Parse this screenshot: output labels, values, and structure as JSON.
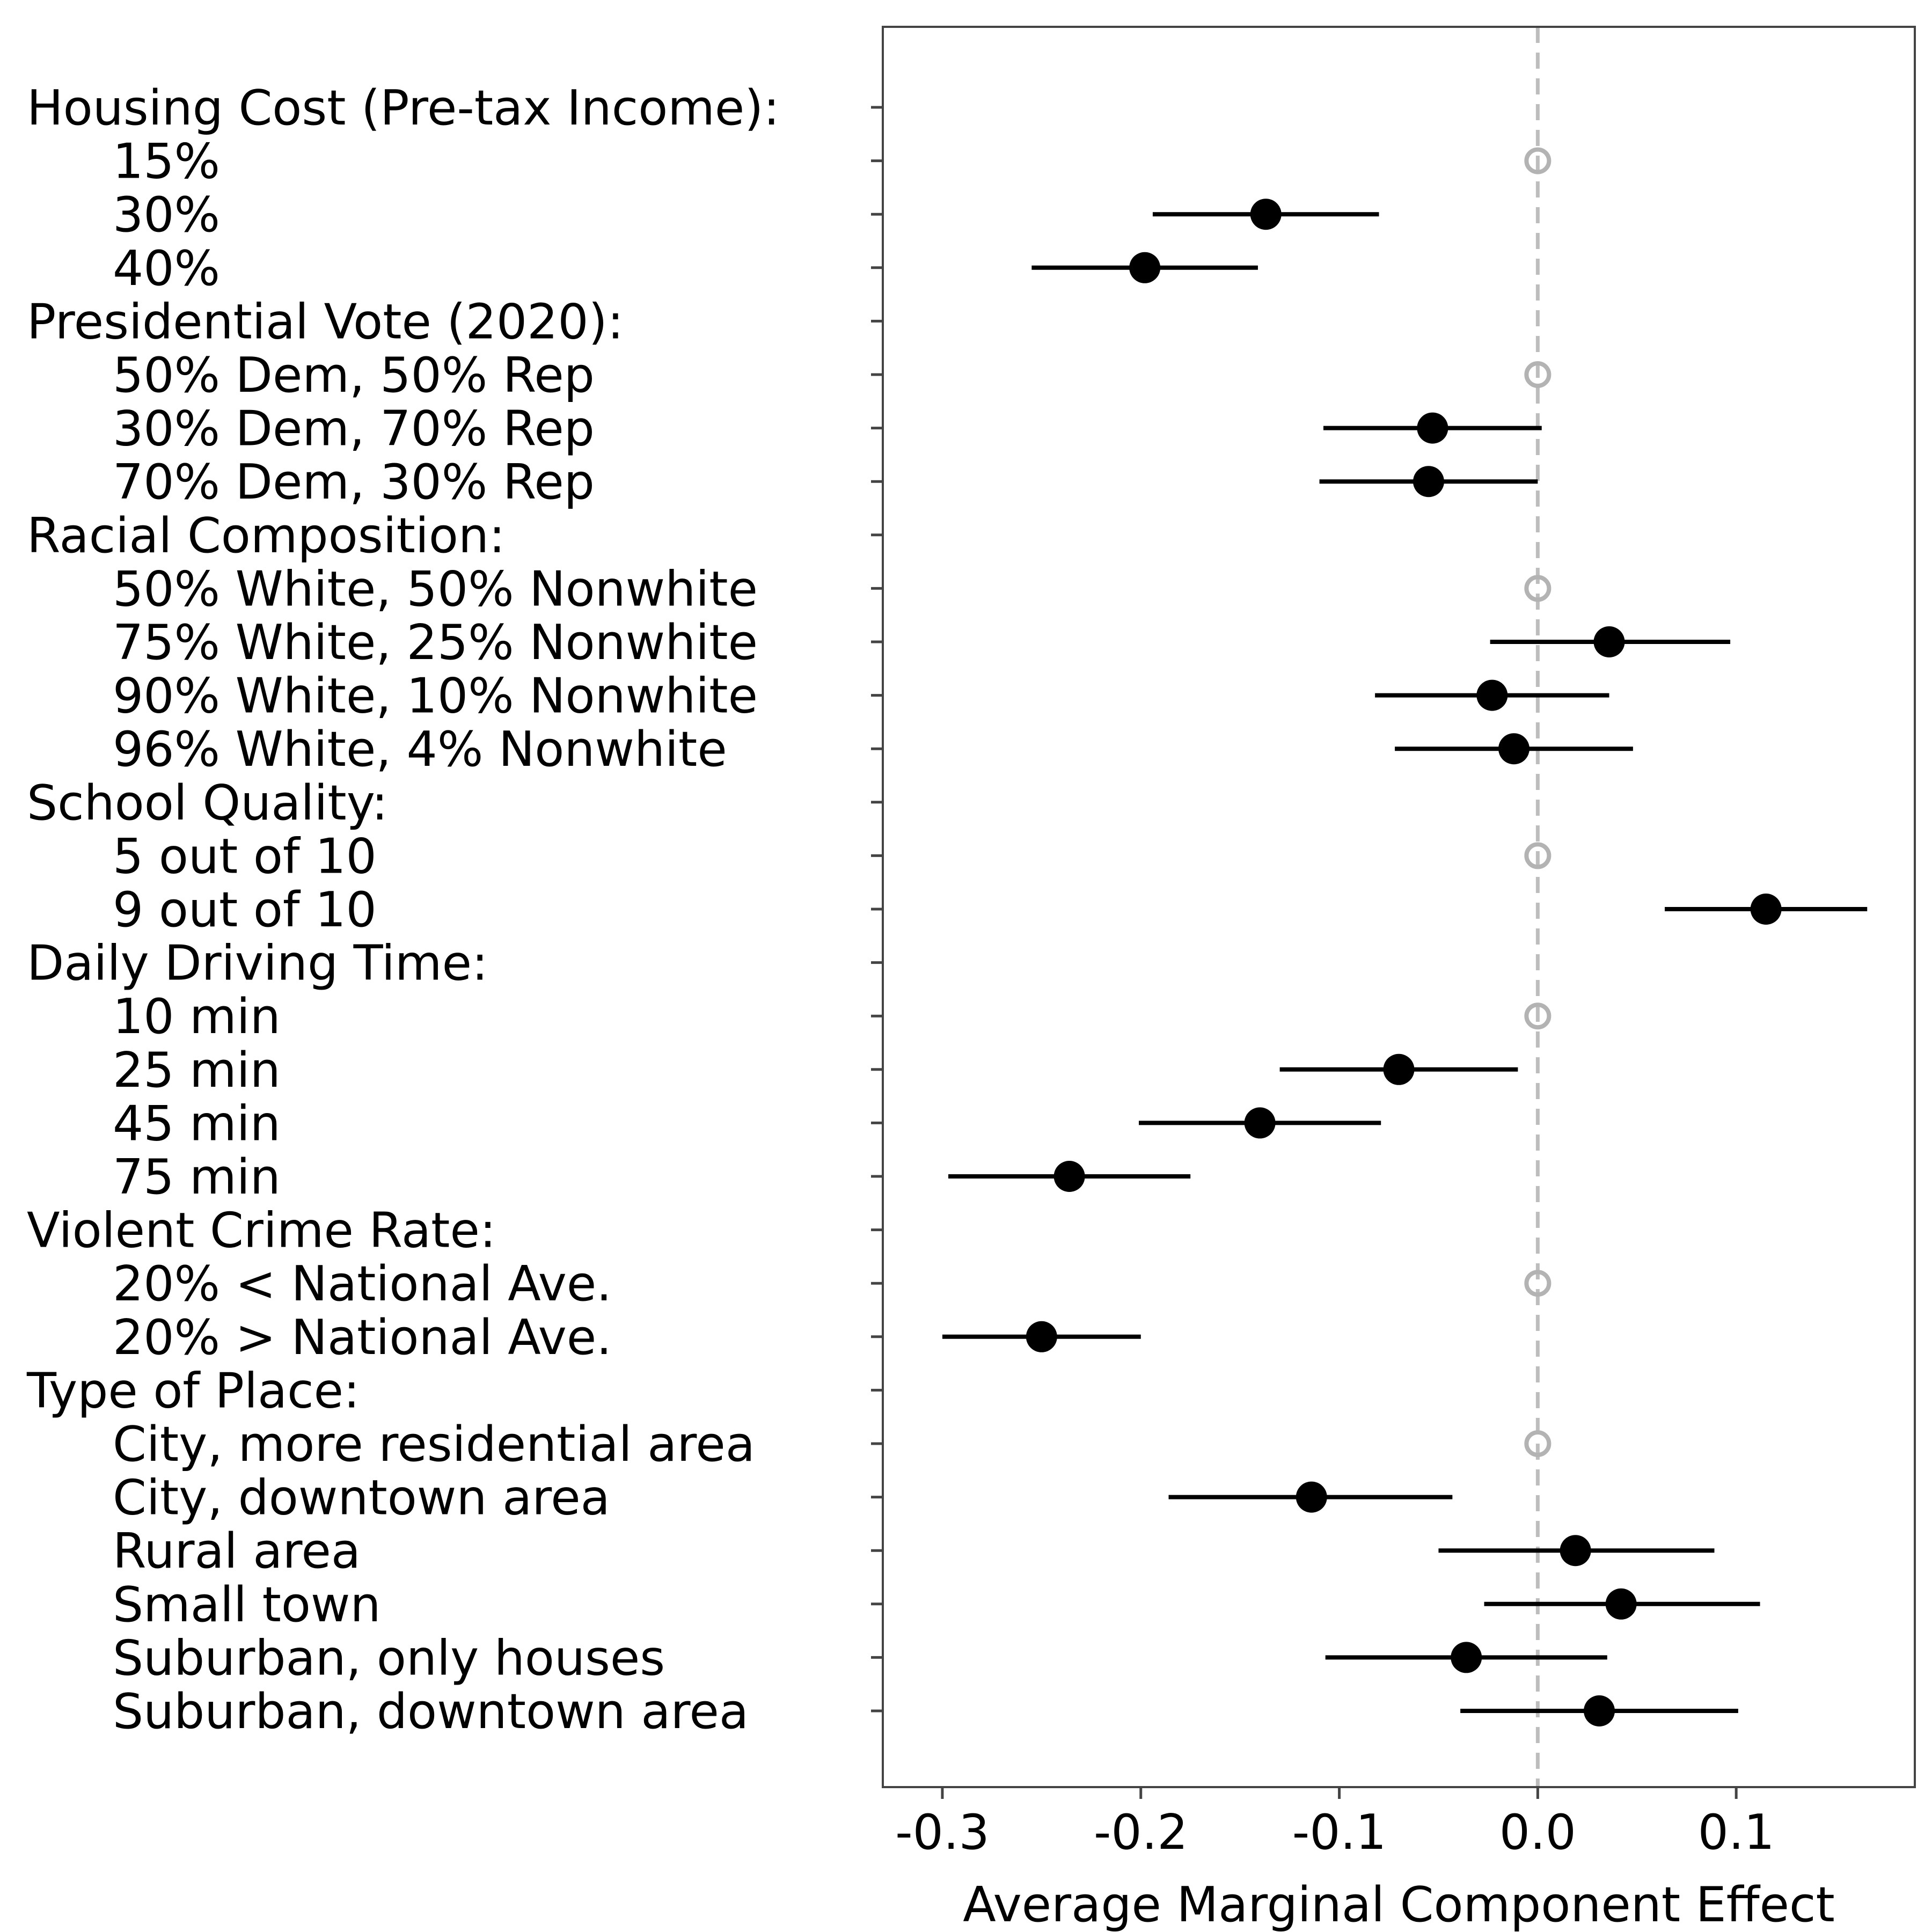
{
  "chart_data": {
    "type": "scatter",
    "xlabel": "Average Marginal Component Effect",
    "xlim": [
      -0.33,
      0.19
    ],
    "xticks": [
      -0.3,
      -0.2,
      -0.1,
      0.0,
      0.1
    ],
    "xtick_labels": [
      "-0.3",
      "-0.2",
      "-0.1",
      "0.0",
      "0.1"
    ],
    "reference_line": 0.0,
    "grid": false,
    "colors": {
      "estimate": "#000000",
      "baseline": "#b3b3b3",
      "reference_line": "#bdbdbd",
      "frame": "#444444"
    },
    "rows": [
      {
        "label": "Housing Cost (Pre-tax Income):",
        "kind": "header"
      },
      {
        "label": "15%",
        "kind": "baseline",
        "est": 0.0
      },
      {
        "label": "30%",
        "kind": "estimate",
        "est": -0.137,
        "lo": -0.194,
        "hi": -0.08
      },
      {
        "label": "40%",
        "kind": "estimate",
        "est": -0.198,
        "lo": -0.255,
        "hi": -0.141
      },
      {
        "label": "Presidential Vote (2020):",
        "kind": "header"
      },
      {
        "label": "50% Dem, 50% Rep",
        "kind": "baseline",
        "est": 0.0
      },
      {
        "label": "30% Dem, 70% Rep",
        "kind": "estimate",
        "est": -0.053,
        "lo": -0.108,
        "hi": 0.002
      },
      {
        "label": "70% Dem, 30% Rep",
        "kind": "estimate",
        "est": -0.055,
        "lo": -0.11,
        "hi": 0.0
      },
      {
        "label": "Racial Composition:",
        "kind": "header"
      },
      {
        "label": "50% White, 50% Nonwhite",
        "kind": "baseline",
        "est": 0.0
      },
      {
        "label": "75% White, 25% Nonwhite",
        "kind": "estimate",
        "est": 0.036,
        "lo": -0.024,
        "hi": 0.097
      },
      {
        "label": "90% White, 10% Nonwhite",
        "kind": "estimate",
        "est": -0.023,
        "lo": -0.082,
        "hi": 0.036
      },
      {
        "label": "96% White, 4% Nonwhite",
        "kind": "estimate",
        "est": -0.012,
        "lo": -0.072,
        "hi": 0.048
      },
      {
        "label": "School Quality:",
        "kind": "header"
      },
      {
        "label": "5 out of 10",
        "kind": "baseline",
        "est": 0.0
      },
      {
        "label": "9 out of 10",
        "kind": "estimate",
        "est": 0.115,
        "lo": 0.064,
        "hi": 0.166
      },
      {
        "label": "Daily Driving Time:",
        "kind": "header"
      },
      {
        "label": "10 min",
        "kind": "baseline",
        "est": 0.0
      },
      {
        "label": "25 min",
        "kind": "estimate",
        "est": -0.07,
        "lo": -0.13,
        "hi": -0.01
      },
      {
        "label": "45 min",
        "kind": "estimate",
        "est": -0.14,
        "lo": -0.201,
        "hi": -0.079
      },
      {
        "label": "75 min",
        "kind": "estimate",
        "est": -0.236,
        "lo": -0.297,
        "hi": -0.175
      },
      {
        "label": "Violent Crime Rate:",
        "kind": "header"
      },
      {
        "label": "20% < National Ave.",
        "kind": "baseline",
        "est": 0.0
      },
      {
        "label": "20% > National Ave.",
        "kind": "estimate",
        "est": -0.25,
        "lo": -0.3,
        "hi": -0.2
      },
      {
        "label": "Type of Place:",
        "kind": "header"
      },
      {
        "label": "City, more residential area",
        "kind": "baseline",
        "est": 0.0
      },
      {
        "label": "City, downtown area",
        "kind": "estimate",
        "est": -0.114,
        "lo": -0.186,
        "hi": -0.043
      },
      {
        "label": "Rural area",
        "kind": "estimate",
        "est": 0.019,
        "lo": -0.05,
        "hi": 0.089
      },
      {
        "label": "Small town",
        "kind": "estimate",
        "est": 0.042,
        "lo": -0.027,
        "hi": 0.112
      },
      {
        "label": "Suburban, only houses",
        "kind": "estimate",
        "est": -0.036,
        "lo": -0.107,
        "hi": 0.035
      },
      {
        "label": "Suburban, downtown area",
        "kind": "estimate",
        "est": 0.031,
        "lo": -0.039,
        "hi": 0.101
      }
    ]
  }
}
